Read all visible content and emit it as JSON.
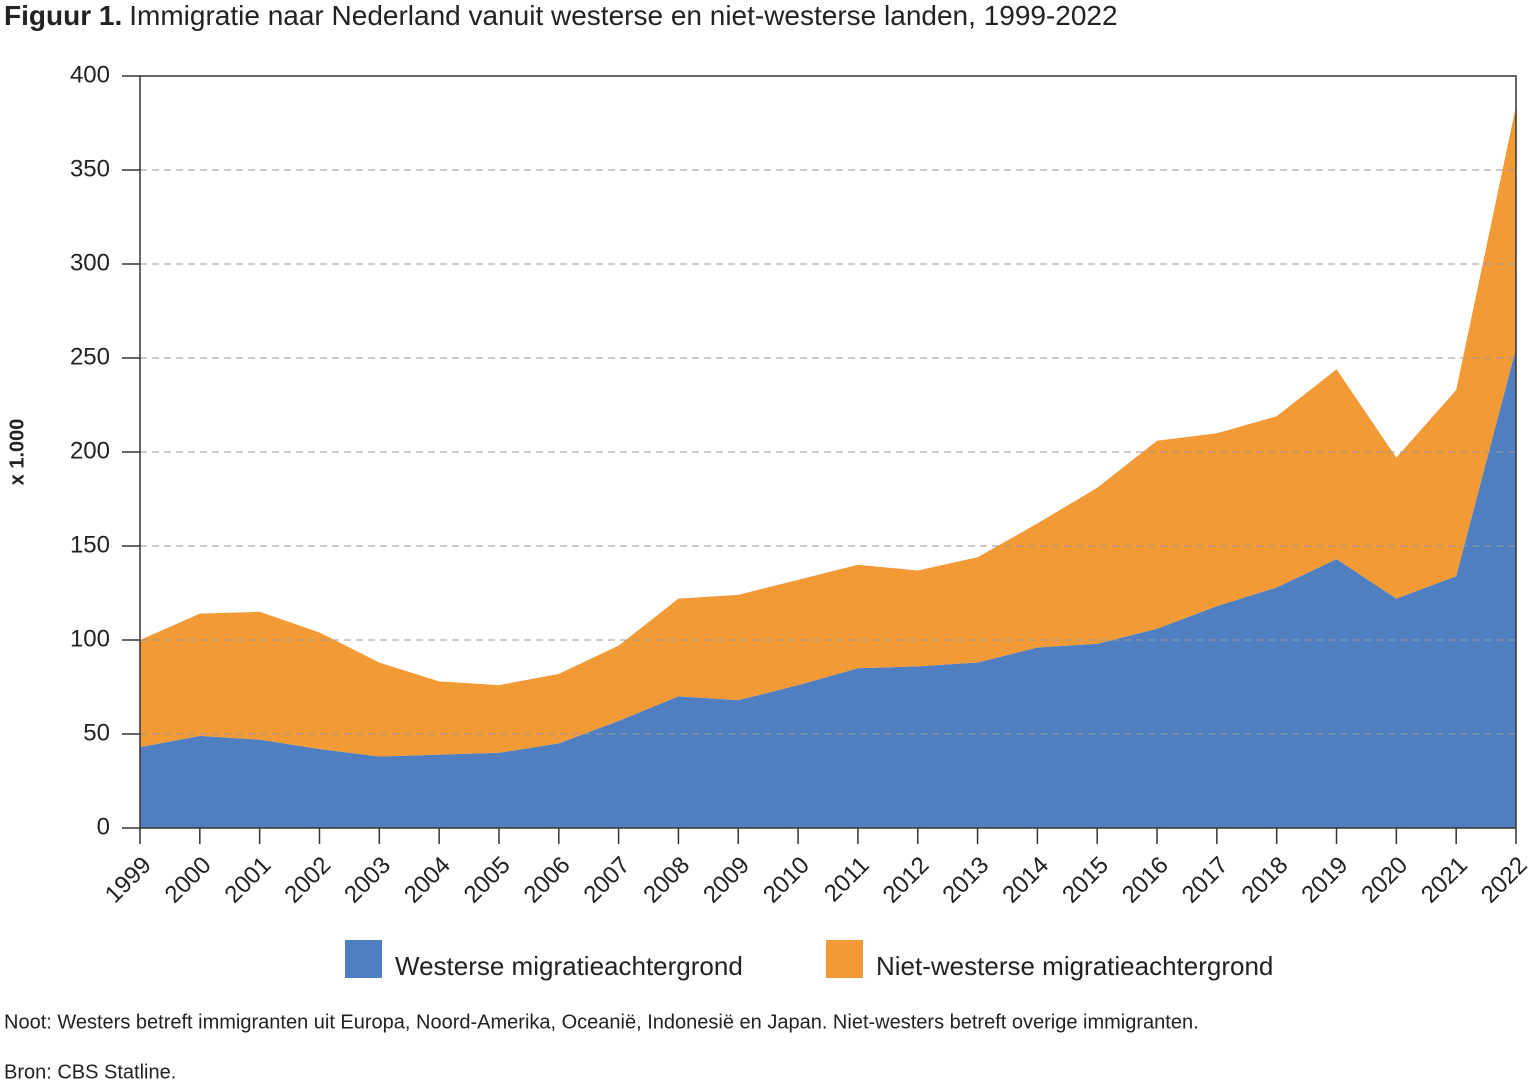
{
  "chart_data": {
    "type": "stacked-area",
    "title_label": "Figuur 1.",
    "title": "Immigratie naar Nederland vanuit westerse en niet-westerse landen, 1999-2022",
    "y_label": "x 1.000",
    "categories": [
      "1999",
      "2000",
      "2001",
      "2002",
      "2003",
      "2004",
      "2005",
      "2006",
      "2007",
      "2008",
      "2009",
      "2010",
      "2011",
      "2012",
      "2013",
      "2014",
      "2015",
      "2016",
      "2017",
      "2018",
      "2019",
      "2020",
      "2021",
      "2022"
    ],
    "series": [
      {
        "name": "Westerse migratieachtergrond",
        "color": "#4f7fc1",
        "values": [
          43,
          49,
          47,
          42,
          38,
          39,
          40,
          45,
          57,
          70,
          68,
          76,
          85,
          86,
          88,
          96,
          98,
          106,
          118,
          128,
          143,
          122,
          134,
          255
        ]
      },
      {
        "name": "Niet-westerse migratieachtergrond",
        "color": "#f29a36",
        "values": [
          57,
          65,
          68,
          62,
          50,
          39,
          36,
          37,
          40,
          52,
          56,
          56,
          55,
          51,
          56,
          66,
          83,
          100,
          92,
          91,
          101,
          75,
          99,
          129
        ]
      }
    ],
    "ylim": [
      0,
      400
    ],
    "yticks": [
      0,
      50,
      100,
      150,
      200,
      250,
      300,
      350,
      400
    ],
    "grid": true,
    "note": "Noot: Westers betreft immigranten uit Europa, Noord-Amerika, Oceanië, Indonesië en Japan. Niet-westers betreft overige immigranten.",
    "source": "Bron: CBS Statline."
  }
}
